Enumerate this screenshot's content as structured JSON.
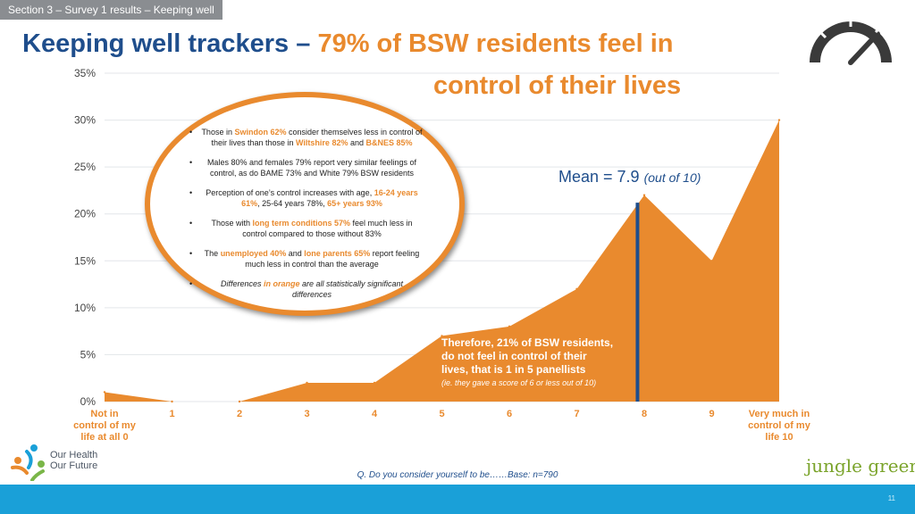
{
  "section_tab": "Section 3 – Survey 1 results – Keeping well",
  "title": {
    "main": "Keeping well trackers – ",
    "accent_line1": "79% of BSW residents feel in",
    "accent_line2": "control of their lives"
  },
  "colors": {
    "navy": "#1f4e8c",
    "orange": "#e98a2e",
    "footer_blue": "#1aa0d8",
    "jungle_green": "#7aa32a"
  },
  "callout": {
    "b1": {
      "t1": "Those in ",
      "o1": "Swindon 62%",
      "t2": " consider themselves less in control of their lives than those in ",
      "o2": "Wiltshire 82%",
      "t3": " and ",
      "o3": "B&NES 85%"
    },
    "b2": "Males 80% and females 79% report very similar feelings of control, as do BAME 73% and White 79% BSW residents",
    "b3": {
      "t1": "Perception of one’s control increases with age, ",
      "o1": "16-24 years 61%",
      "t2": ", 25-64 years 78%, ",
      "o2": "65+ years 93%"
    },
    "b4": {
      "t1": "Those with ",
      "o1": "long term conditions 57%",
      "t2": " feel much less in control compared to those without 83%"
    },
    "b5": {
      "t1": "The ",
      "o1": "unemployed 40%",
      "t2": " and ",
      "o2": "lone parents 65%",
      "t3": " report feeling much less in control than the average"
    },
    "b6": {
      "t1": "Differences ",
      "o1": "in orange",
      "t2": " are all statistically significant differences"
    }
  },
  "mean": {
    "label": "Mean = 7.9",
    "suffix": "(out of 10)"
  },
  "therefore": {
    "line1": "Therefore, 21% of BSW residents,",
    "line2": "do not feel in control of their",
    "line3": "lives, that is 1 in 5 panellists",
    "note": "(ie. they gave a score of 6 or less out of 10)"
  },
  "question": "Q. Do you consider yourself to be……Base: n=790",
  "page_number": "11",
  "logos": {
    "ohof_line1": "Our Health",
    "ohof_line2": "Our Future",
    "jungle": "jungle green"
  },
  "chart_data": {
    "type": "area",
    "categories": [
      "Not in control of my life at all 0",
      "1",
      "2",
      "3",
      "4",
      "5",
      "6",
      "7",
      "8",
      "9",
      "Very much in control of my life 10"
    ],
    "x_label_lines": [
      [
        "Not in",
        "control of my",
        "life at all 0"
      ],
      [
        "1"
      ],
      [
        "2"
      ],
      [
        "3"
      ],
      [
        "4"
      ],
      [
        "5"
      ],
      [
        "6"
      ],
      [
        "7"
      ],
      [
        "8"
      ],
      [
        "9"
      ],
      [
        "Very much in",
        "control of my",
        "life 10"
      ]
    ],
    "values": [
      1,
      0,
      0,
      2,
      2,
      7,
      8,
      12,
      22,
      15,
      30
    ],
    "ylim": [
      0,
      35
    ],
    "yticks": [
      "0%",
      "5%",
      "10%",
      "15%",
      "20%",
      "25%",
      "30%",
      "35%"
    ],
    "mean": 7.9,
    "grid": true,
    "color": "#e98a2e"
  }
}
